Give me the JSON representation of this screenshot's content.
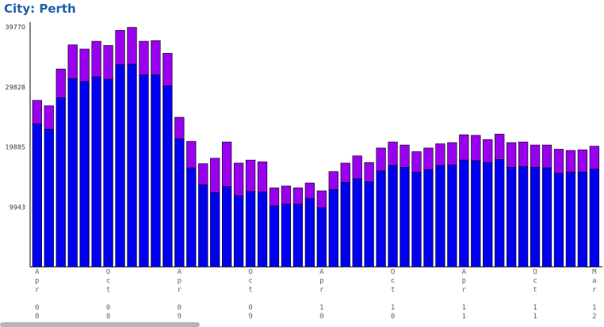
{
  "page": {
    "title": "City: Perth"
  },
  "chart_data": {
    "type": "bar",
    "stacked": true,
    "title": "City: Perth",
    "yticks": [
      9943,
      19885,
      29828,
      39770
    ],
    "ylim": [
      0,
      39770
    ],
    "grid": false,
    "legend": "none",
    "xtick_labels": [
      {
        "index": 0,
        "label": "Apr 08"
      },
      {
        "index": 6,
        "label": "Oct 08"
      },
      {
        "index": 12,
        "label": "Apr 09"
      },
      {
        "index": 18,
        "label": "Oct 09"
      },
      {
        "index": 24,
        "label": "Apr 10"
      },
      {
        "index": 30,
        "label": "Oct 10"
      },
      {
        "index": 36,
        "label": "Apr 11"
      },
      {
        "index": 42,
        "label": "Oct 11"
      },
      {
        "index": 47,
        "label": "Mar 12"
      }
    ],
    "series": [
      {
        "color": "#0000f0",
        "values": [
          23700,
          22800,
          28000,
          31200,
          30700,
          31500,
          31100,
          33500,
          33600,
          31800,
          31800,
          30000,
          21200,
          16400,
          13600,
          12300,
          13300,
          11800,
          12500,
          12400,
          10100,
          10400,
          10400,
          11300,
          9800,
          12800,
          14000,
          14600,
          14100,
          15900,
          16800,
          16500,
          15700,
          16100,
          16800,
          16900,
          17700,
          17600,
          17300,
          17800,
          16500,
          16600,
          16500,
          16400,
          15500,
          15700,
          15700,
          16200
        ]
      },
      {
        "color": "#9900ee",
        "values": [
          3900,
          3900,
          4800,
          5600,
          5400,
          5900,
          5600,
          5700,
          6100,
          5600,
          5700,
          5400,
          3600,
          4400,
          3500,
          5700,
          7400,
          5400,
          5200,
          5000,
          3000,
          3000,
          2700,
          2600,
          2800,
          3000,
          3200,
          3800,
          3200,
          3800,
          3900,
          3700,
          3400,
          3600,
          3600,
          3700,
          4200,
          4200,
          3800,
          4200,
          4100,
          4100,
          3700,
          3800,
          4000,
          3600,
          3700,
          3800
        ]
      }
    ]
  }
}
